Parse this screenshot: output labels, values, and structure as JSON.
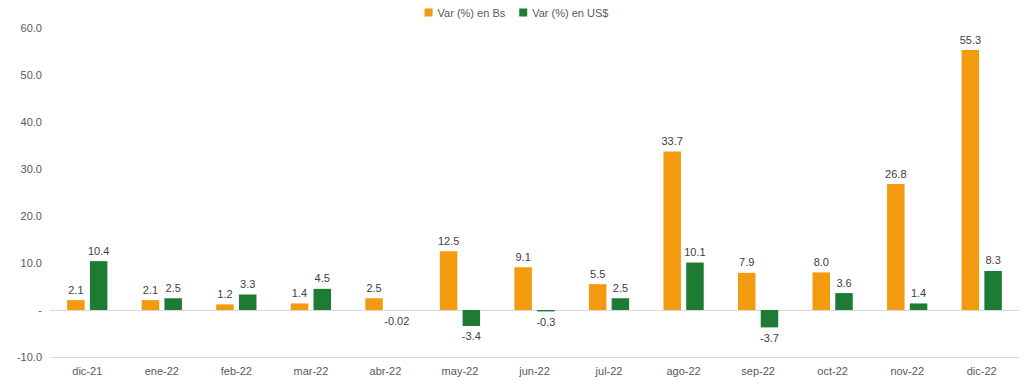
{
  "chart_data": {
    "type": "bar",
    "categories": [
      "dic-21",
      "ene-22",
      "feb-22",
      "mar-22",
      "abr-22",
      "may-22",
      "jun-22",
      "jul-22",
      "ago-22",
      "sep-22",
      "oct-22",
      "nov-22",
      "dic-22"
    ],
    "series": [
      {
        "name": "Var (%) en Bs",
        "color": "#f39a0e",
        "values": [
          2.1,
          2.1,
          1.2,
          1.4,
          2.5,
          12.5,
          9.1,
          5.5,
          33.7,
          7.9,
          8.0,
          26.8,
          55.3
        ],
        "value_labels": [
          "2.1",
          "2.1",
          "1.2",
          "1.4",
          "2.5",
          "12.5",
          "9.1",
          "5.5",
          "33.7",
          "7.9",
          "8.0",
          "26.8",
          "55.3"
        ]
      },
      {
        "name": "Var (%) en US$",
        "color": "#1e7b34",
        "values": [
          10.4,
          2.5,
          3.3,
          4.5,
          -0.02,
          -3.4,
          -0.3,
          2.5,
          10.1,
          -3.7,
          3.6,
          1.4,
          8.3
        ]
      }
    ],
    "ylim": [
      -10,
      60
    ],
    "yticks": [
      {
        "value": -10,
        "label": "-10.0"
      },
      {
        "value": 0,
        "label": "-"
      },
      {
        "value": 10,
        "label": "10.0"
      },
      {
        "value": 20,
        "label": "20.0"
      },
      {
        "value": 30,
        "label": "30.0"
      },
      {
        "value": 40,
        "label": "40.0"
      },
      {
        "value": 50,
        "label": "50.0"
      },
      {
        "value": 60,
        "label": "60.0"
      }
    ],
    "grid": false,
    "legend": "top",
    "data_labels": true
  }
}
